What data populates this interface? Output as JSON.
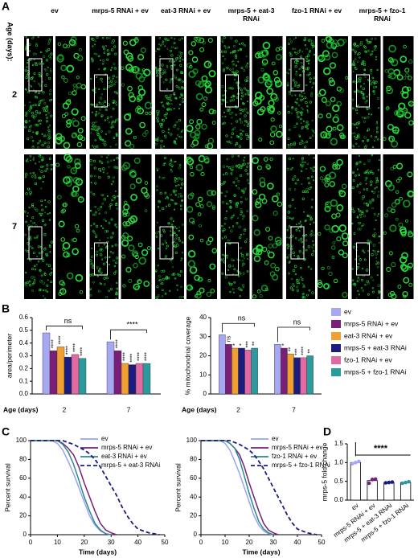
{
  "panel_labels": {
    "a": "A",
    "b": "B",
    "c": "C",
    "d": "D"
  },
  "panel_a": {
    "row_title": "Age (days):",
    "rows": [
      "2",
      "7"
    ],
    "columns": [
      "ev",
      "mrps-5 RNAi + ev",
      "eat-3 RNAi + ev",
      "mrps-5 + eat-3 RNAi",
      "fzo-1 RNAi + ev",
      "mrps-5 + fzo-1 RNAi"
    ]
  },
  "chart_data": [
    {
      "type": "bar",
      "ylabel": "area/perimeter",
      "xlabel": "Age (days)",
      "categories": [
        "2",
        "7"
      ],
      "ylim": [
        0,
        0.6
      ],
      "yticks": [
        {
          "value": 0,
          "label": "0.0"
        },
        0.1,
        0.2,
        0.3,
        0.4,
        0.5,
        0.6
      ],
      "series": [
        {
          "name": "ev",
          "color": "#a8a8f2",
          "values": [
            0.48,
            0.41
          ]
        },
        {
          "name": "mrps-5 RNAi + ev",
          "color": "#7a1f78",
          "values": [
            0.34,
            0.34
          ],
          "significance": [
            "****",
            "****"
          ]
        },
        {
          "name": "eat-3 RNAi + ev",
          "color": "#f0a030",
          "values": [
            0.37,
            0.24
          ],
          "significance": [
            "****",
            "****"
          ]
        },
        {
          "name": "mrps-5 + eat-3 RNAi",
          "color": "#1c1c7e",
          "values": [
            0.29,
            0.23
          ],
          "significance": [
            "****",
            "****"
          ]
        },
        {
          "name": "fzo-1 RNAi + ev",
          "color": "#e26aa2",
          "values": [
            0.31,
            0.24
          ],
          "significance": [
            "****",
            "****"
          ]
        },
        {
          "name": "mrps-5 + fzo-1 RNAi",
          "color": "#2a9a9c",
          "values": [
            0.28,
            0.24
          ],
          "significance": [
            "****",
            "****"
          ]
        }
      ],
      "annotations": [
        "ns",
        "****"
      ]
    },
    {
      "type": "bar",
      "ylabel": "% mitochondrial coverage",
      "xlabel": "Age (days)",
      "categories": [
        "2",
        "7"
      ],
      "ylim": [
        0,
        40
      ],
      "yticks": [
        0,
        10,
        20,
        30,
        40
      ],
      "series": [
        {
          "name": "ev",
          "color": "#a8a8f2",
          "values": [
            31,
            26
          ]
        },
        {
          "name": "mrps-5 RNAi + ev",
          "color": "#7a1f78",
          "values": [
            26,
            24
          ],
          "significance": [
            "ns",
            "*"
          ]
        },
        {
          "name": "eat-3 RNAi + ev",
          "color": "#f0a030",
          "values": [
            24,
            21
          ],
          "significance": [
            "*",
            "**"
          ]
        },
        {
          "name": "mrps-5 + eat-3 RNAi",
          "color": "#1c1c7e",
          "values": [
            24,
            19
          ],
          "significance": [
            "*",
            "***"
          ]
        },
        {
          "name": "fzo-1 RNAi + ev",
          "color": "#e26aa2",
          "values": [
            23,
            19
          ],
          "significance": [
            "***",
            "****"
          ]
        },
        {
          "name": "mrps-5 + fzo-1 RNAi",
          "color": "#2a9a9c",
          "values": [
            24,
            20
          ],
          "significance": [
            "**",
            "**"
          ]
        }
      ],
      "annotations": [
        "ns",
        "ns"
      ]
    },
    {
      "type": "line",
      "ylabel": "Percent survival",
      "xlabel": "Time (days)",
      "xlim": [
        0,
        50
      ],
      "xticks": [
        0,
        10,
        20,
        30,
        40,
        50
      ],
      "ylim": [
        0,
        100
      ],
      "yticks": [
        0,
        20,
        40,
        60,
        80,
        100
      ],
      "series": [
        {
          "name": "ev",
          "color": "#9aa2f2",
          "dash": false,
          "x": [
            0,
            8,
            10,
            12,
            14,
            16,
            18,
            20,
            22,
            24,
            26,
            28,
            30
          ],
          "values": [
            100,
            100,
            97,
            90,
            78,
            65,
            50,
            35,
            20,
            10,
            4,
            1,
            0
          ]
        },
        {
          "name": "mrps-5 RNAi + ev",
          "color": "#7a1f78",
          "dash": false,
          "x": [
            0,
            10,
            12,
            14,
            16,
            18,
            20,
            22,
            24,
            26,
            28,
            30,
            32
          ],
          "values": [
            100,
            100,
            97,
            92,
            85,
            72,
            55,
            40,
            25,
            12,
            5,
            2,
            0
          ]
        },
        {
          "name": "eat-3 RNAi + ev",
          "color": "#2a8a8a",
          "dash": false,
          "x": [
            0,
            10,
            12,
            14,
            16,
            18,
            20,
            22,
            24,
            26,
            28,
            30
          ],
          "values": [
            100,
            100,
            96,
            88,
            75,
            58,
            40,
            25,
            12,
            5,
            1,
            0
          ]
        },
        {
          "name": "mrps-5 + eat-3 RNAi",
          "color": "#1c1c7e",
          "dash": true,
          "x": [
            0,
            12,
            14,
            16,
            18,
            20,
            22,
            24,
            26,
            28,
            30,
            32,
            34,
            36,
            38,
            40,
            44,
            48
          ],
          "values": [
            100,
            100,
            98,
            96,
            93,
            90,
            86,
            80,
            72,
            62,
            52,
            42,
            30,
            20,
            12,
            6,
            2,
            0
          ]
        }
      ]
    },
    {
      "type": "line",
      "ylabel": "Percent survival",
      "xlabel": "Time (days)",
      "xlim": [
        0,
        50
      ],
      "xticks": [
        0,
        10,
        20,
        30,
        40,
        50
      ],
      "ylim": [
        0,
        100
      ],
      "yticks": [
        0,
        20,
        40,
        60,
        80,
        100
      ],
      "series": [
        {
          "name": "ev",
          "color": "#9aa2f2",
          "dash": false,
          "x": [
            0,
            8,
            10,
            12,
            14,
            16,
            18,
            20,
            22,
            24,
            26,
            28,
            30
          ],
          "values": [
            100,
            100,
            97,
            90,
            78,
            65,
            50,
            35,
            20,
            10,
            4,
            1,
            0
          ]
        },
        {
          "name": "mrps-5 RNAi + ev",
          "color": "#7a1f78",
          "dash": false,
          "x": [
            0,
            10,
            12,
            14,
            16,
            18,
            20,
            22,
            24,
            26,
            28,
            30,
            32
          ],
          "values": [
            100,
            100,
            97,
            92,
            85,
            72,
            55,
            40,
            25,
            12,
            5,
            2,
            0
          ]
        },
        {
          "name": "fzo-1 RNAi + ev",
          "color": "#2a8a8a",
          "dash": false,
          "x": [
            0,
            10,
            12,
            14,
            16,
            18,
            20,
            22,
            24,
            26,
            28,
            30
          ],
          "values": [
            100,
            100,
            97,
            92,
            80,
            62,
            44,
            28,
            14,
            6,
            2,
            0
          ]
        },
        {
          "name": "mrps-5 + fzo-1 RNAi",
          "color": "#1c1c7e",
          "dash": true,
          "x": [
            0,
            12,
            14,
            16,
            18,
            20,
            22,
            24,
            26,
            28,
            30,
            32,
            34,
            36,
            38,
            40,
            44,
            48
          ],
          "values": [
            100,
            100,
            98,
            96,
            93,
            90,
            85,
            78,
            70,
            60,
            50,
            40,
            30,
            20,
            12,
            6,
            2,
            0
          ]
        }
      ]
    },
    {
      "type": "bar",
      "ylabel": "mrps-5 fold change",
      "categories": [
        "ev",
        "mrps-5 RNAi + ev",
        "mrps-5 + eat-3 RNAi",
        "mrps-5 + fzo-1 RNAi"
      ],
      "ylim": [
        0,
        1.5
      ],
      "yticks": [
        {
          "value": 0,
          "label": "0.0"
        },
        0.5,
        {
          "value": 1,
          "label": "1.0"
        },
        1.5
      ],
      "values": [
        1.0,
        0.52,
        0.47,
        0.47
      ],
      "points": [
        [
          0.97,
          1.0,
          1.03
        ],
        [
          0.45,
          0.55,
          0.56
        ],
        [
          0.46,
          0.47,
          0.48
        ],
        [
          0.45,
          0.47,
          0.49
        ]
      ],
      "point_colors": [
        "#a8a8f2",
        "#7a1f78",
        "#1c1c7e",
        "#2a9a9c"
      ],
      "annotation": "****"
    }
  ]
}
